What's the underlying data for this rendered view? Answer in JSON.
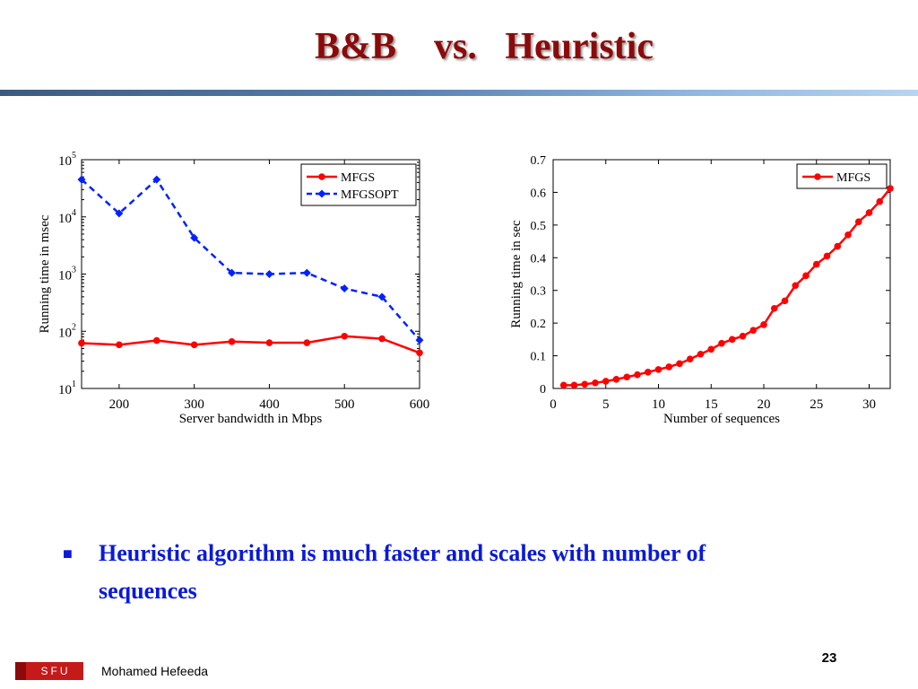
{
  "slide": {
    "title": "B&B    vs.   Heuristic",
    "bullet": "Heuristic algorithm is much faster and scales with number of sequences",
    "bullet_marker": "■",
    "page_number": "23",
    "author": "Mohamed Hefeeda",
    "logo_text": "SFU"
  },
  "colors": {
    "title": "#8b0a0a",
    "bullet_text": "#0a1ad8",
    "red_series": "#ff0000",
    "blue_series": "#0022ff",
    "logo": "#c41a1a"
  },
  "chart_data": [
    {
      "type": "line",
      "xlabel": "Server bandwidth in Mbps",
      "ylabel": "Running time in msec",
      "yscale": "log",
      "xlim": [
        150,
        600
      ],
      "ylim": [
        10,
        100000
      ],
      "xticks": [
        200,
        300,
        400,
        500,
        600
      ],
      "yticks": [
        10,
        100,
        1000,
        10000,
        100000
      ],
      "ytick_labels": [
        [
          "10",
          "1"
        ],
        [
          "10",
          "2"
        ],
        [
          "10",
          "3"
        ],
        [
          "10",
          "4"
        ],
        [
          "10",
          "5"
        ]
      ],
      "grid": false,
      "legend_position": "top-right",
      "series": [
        {
          "name": "MFGS",
          "color": "#ff0000",
          "marker": "circle",
          "dash": "solid",
          "x": [
            150,
            200,
            250,
            300,
            350,
            400,
            450,
            500,
            550,
            600
          ],
          "y": [
            62,
            58,
            69,
            58,
            66,
            63,
            63,
            82,
            74,
            42
          ]
        },
        {
          "name": "MFGSOPT",
          "color": "#0022ff",
          "marker": "diamond",
          "dash": "dashed",
          "x": [
            150,
            200,
            250,
            300,
            350,
            400,
            450,
            500,
            550,
            600
          ],
          "y": [
            45000,
            11500,
            45000,
            4300,
            1050,
            1000,
            1050,
            560,
            400,
            70
          ]
        }
      ]
    },
    {
      "type": "line",
      "xlabel": "Number of sequences",
      "ylabel": "Running time in sec",
      "yscale": "linear",
      "xlim": [
        0,
        32
      ],
      "ylim": [
        0,
        0.7
      ],
      "xticks": [
        0,
        5,
        10,
        15,
        20,
        25,
        30
      ],
      "yticks": [
        0,
        0.1,
        0.2,
        0.3,
        0.4,
        0.5,
        0.6,
        0.7
      ],
      "ytick_labels": [
        "0",
        "0.1",
        "0.2",
        "0.3",
        "0.4",
        "0.5",
        "0.6",
        "0.7"
      ],
      "grid": false,
      "legend_position": "top-right",
      "series": [
        {
          "name": "MFGS",
          "color": "#ff0000",
          "marker": "circle",
          "dash": "solid",
          "x": [
            1,
            2,
            3,
            4,
            5,
            6,
            7,
            8,
            9,
            10,
            11,
            12,
            13,
            14,
            15,
            16,
            17,
            18,
            19,
            20,
            21,
            22,
            23,
            24,
            25,
            26,
            27,
            28,
            29,
            30,
            31,
            32
          ],
          "y": [
            0.01,
            0.01,
            0.013,
            0.017,
            0.022,
            0.028,
            0.035,
            0.042,
            0.05,
            0.058,
            0.066,
            0.076,
            0.09,
            0.105,
            0.12,
            0.138,
            0.15,
            0.16,
            0.178,
            0.195,
            0.245,
            0.268,
            0.315,
            0.345,
            0.38,
            0.405,
            0.435,
            0.47,
            0.51,
            0.538,
            0.572,
            0.612
          ]
        }
      ]
    }
  ]
}
